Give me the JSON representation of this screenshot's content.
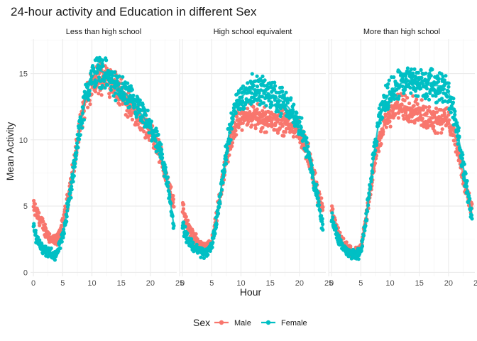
{
  "chart_data": {
    "type": "scatter",
    "title": "24-hour activity and Education in different Sex",
    "xlabel": "Hour",
    "ylabel": "Mean Activity",
    "xlim": [
      -0.5,
      24.5
    ],
    "ylim": [
      -0.3,
      17.6
    ],
    "x_ticks": [
      0,
      5,
      10,
      15,
      20,
      25
    ],
    "y_ticks": [
      0,
      5,
      10,
      15
    ],
    "grid": true,
    "smooth_lines": true,
    "legend": {
      "title": "Sex",
      "position": "bottom"
    },
    "series_styles": [
      {
        "name": "Male",
        "color": "#F8766D"
      },
      {
        "name": "Female",
        "color": "#00BFC4"
      }
    ],
    "panels": [
      {
        "title": "Less than high school",
        "series": [
          {
            "name": "Male",
            "x": [
              0,
              1,
              2,
              3,
              4,
              5,
              6,
              7,
              8,
              9,
              10,
              11,
              12,
              13,
              14,
              15,
              16,
              17,
              18,
              19,
              20,
              21,
              22,
              23,
              24
            ],
            "y": [
              4.9,
              4.1,
              3.2,
              2.5,
              2.3,
              3.6,
              5.8,
              8.3,
              11.2,
              13.0,
              14.0,
              14.6,
              14.8,
              14.6,
              14.1,
              13.4,
              12.8,
              12.2,
              11.6,
              11.2,
              10.6,
              9.8,
              8.4,
              6.6,
              5.2
            ]
          },
          {
            "name": "Female",
            "x": [
              0,
              1,
              2,
              3,
              4,
              5,
              6,
              7,
              8,
              9,
              10,
              11,
              12,
              13,
              14,
              15,
              16,
              17,
              18,
              19,
              20,
              21,
              22,
              23,
              24
            ],
            "y": [
              3.3,
              2.2,
              1.6,
              1.4,
              1.3,
              2.8,
              5.2,
              8.0,
              11.2,
              13.4,
              14.7,
              15.3,
              15.1,
              14.6,
              14.1,
              13.8,
              13.4,
              12.8,
              12.2,
              11.6,
              10.9,
              10.0,
              8.5,
              6.6,
              3.5
            ]
          }
        ]
      },
      {
        "title": "High school equivalent",
        "series": [
          {
            "name": "Male",
            "x": [
              0,
              1,
              2,
              3,
              4,
              5,
              6,
              7,
              8,
              9,
              10,
              11,
              12,
              13,
              14,
              15,
              16,
              17,
              18,
              19,
              20,
              21,
              22,
              23,
              24
            ],
            "y": [
              4.9,
              3.4,
              2.6,
              2.1,
              1.9,
              2.4,
              4.6,
              7.4,
              9.6,
              11.0,
              11.6,
              11.8,
              11.8,
              11.7,
              11.6,
              11.5,
              11.5,
              11.4,
              11.3,
              11.1,
              10.6,
              9.6,
              8.0,
              6.2,
              4.8
            ]
          },
          {
            "name": "Female",
            "x": [
              0,
              1,
              2,
              3,
              4,
              5,
              6,
              7,
              8,
              9,
              10,
              11,
              12,
              13,
              14,
              15,
              16,
              17,
              18,
              19,
              20,
              21,
              22,
              23,
              24
            ],
            "y": [
              3.6,
              2.4,
              1.9,
              1.6,
              1.4,
              2.0,
              4.4,
              7.6,
              10.6,
              12.4,
              13.2,
              13.6,
              13.8,
              13.8,
              13.7,
              13.4,
              13.2,
              12.9,
              12.5,
              12.0,
              11.3,
              9.8,
              7.9,
              5.8,
              3.3
            ]
          }
        ]
      },
      {
        "title": "More than high school",
        "series": [
          {
            "name": "Male",
            "x": [
              0,
              1,
              2,
              3,
              4,
              5,
              6,
              7,
              8,
              9,
              10,
              11,
              12,
              13,
              14,
              15,
              16,
              17,
              18,
              19,
              20,
              21,
              22,
              23,
              24
            ],
            "y": [
              4.8,
              3.0,
              2.2,
              1.7,
              1.4,
              1.8,
              4.2,
              7.3,
              9.8,
              11.2,
              12.0,
              12.4,
              12.6,
              12.5,
              12.3,
              12.0,
              11.8,
              11.7,
              11.6,
              11.6,
              11.4,
              10.5,
              8.4,
              6.2,
              4.8
            ]
          },
          {
            "name": "Female",
            "x": [
              0,
              1,
              2,
              3,
              4,
              5,
              6,
              7,
              8,
              9,
              10,
              11,
              12,
              13,
              14,
              15,
              16,
              17,
              18,
              19,
              20,
              21,
              22,
              23,
              24
            ],
            "y": [
              4.3,
              2.6,
              1.9,
              1.5,
              1.2,
              1.6,
              4.4,
              8.0,
              11.2,
              12.8,
              13.6,
              14.0,
              14.3,
              14.4,
              14.4,
              14.3,
              14.2,
              14.1,
              14.1,
              14.0,
              13.6,
              12.0,
              9.4,
              6.6,
              4.2
            ]
          }
        ]
      }
    ]
  }
}
